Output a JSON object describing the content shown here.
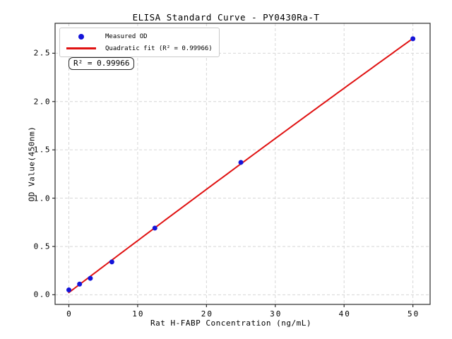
{
  "chart_data": {
    "type": "scatter",
    "title": "ELISA Standard Curve - PY0430Ra-T",
    "xlabel": "Rat H-FABP Concentration (ng/mL)",
    "ylabel": "OD Value(450nm)",
    "xlim": [
      -2.0,
      52.5
    ],
    "ylim": [
      -0.1,
      2.81
    ],
    "grid": true,
    "legend_position": "upper left",
    "background": "#ffffff",
    "grid_color": "#d6d6d6",
    "frame_color": "#2a2a2a",
    "xticks": {
      "values": [
        0,
        10,
        20,
        30,
        40,
        50
      ],
      "labels": [
        "0",
        "10",
        "20",
        "30",
        "40",
        "50"
      ]
    },
    "yticks": {
      "values": [
        0.0,
        0.5,
        1.0,
        1.5,
        2.0,
        2.5
      ],
      "labels": [
        "0.0",
        "0.5",
        "1.0",
        "1.5",
        "2.0",
        "2.5"
      ]
    },
    "series": [
      {
        "name": "Measured OD",
        "type": "scatter",
        "marker": "circle",
        "color": "#1414d9",
        "x": [
          0,
          1.56,
          3.12,
          6.25,
          12.5,
          25,
          50
        ],
        "y": [
          0.05,
          0.11,
          0.17,
          0.34,
          0.69,
          1.37,
          2.65
        ]
      },
      {
        "name": "Quadratic fit (R² = 0.99966)",
        "type": "line",
        "fit": "quadratic",
        "color": "#e01212",
        "x_range": [
          0,
          50
        ]
      }
    ],
    "annotation": {
      "text": "R² = 0.99966"
    }
  }
}
